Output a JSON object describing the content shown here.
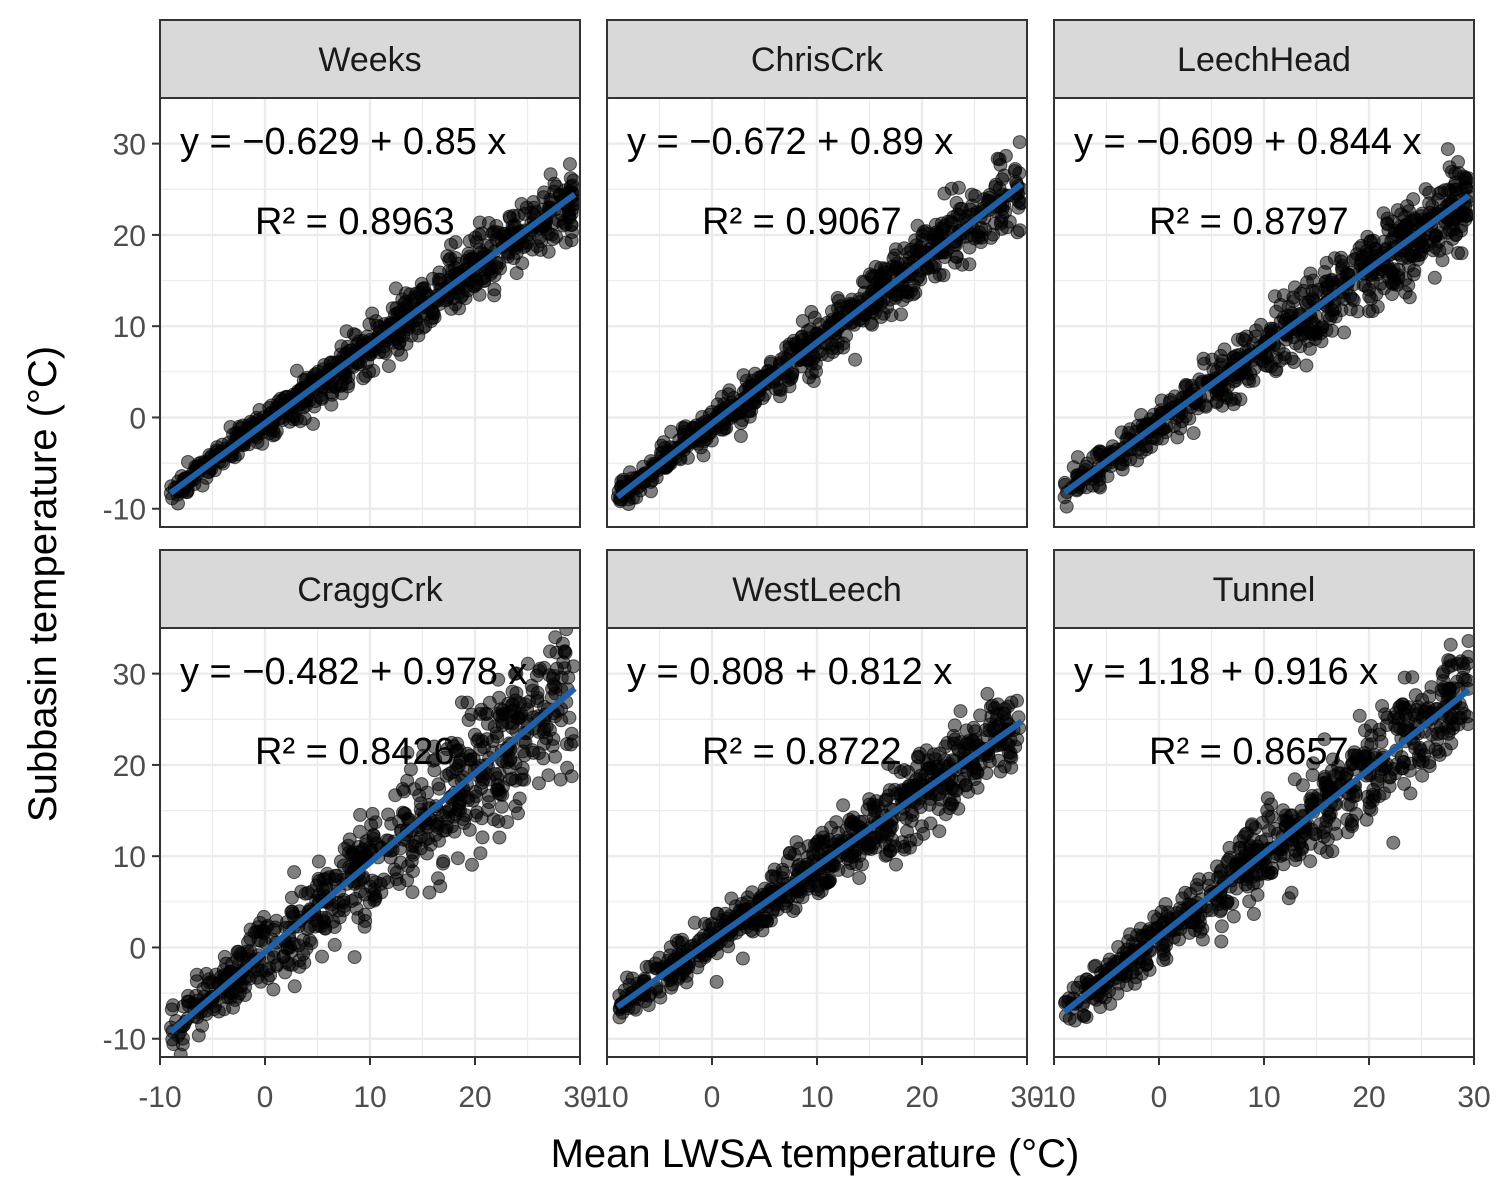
{
  "chart_data": {
    "type": "scatter",
    "xlabel": "Mean LWSA temperature (°C)",
    "ylabel": "Subbasin temperature (°C)",
    "xlim": [
      -10,
      30
    ],
    "ylim": [
      -12,
      35
    ],
    "xticks": [
      -10,
      0,
      10,
      20,
      30
    ],
    "yticks": [
      -10,
      0,
      10,
      20,
      30
    ],
    "xtick_labels": [
      "-10",
      "0",
      "10",
      "20",
      "30"
    ],
    "ytick_labels": [
      "-10",
      "0",
      "10",
      "20",
      "30"
    ],
    "grid": true,
    "point_color": "#000000",
    "line_color": "#1f5fa6",
    "panels": [
      {
        "name": "Weeks",
        "intercept": -0.629,
        "slope": 0.85,
        "r2": 0.8963,
        "equation_label": "y = −0.629 + 0.85 x",
        "r2_label": "R² = 0.8963",
        "x_range": [
          -9,
          29.5
        ],
        "scatter_sd": 1.6
      },
      {
        "name": "ChrisCrk",
        "intercept": -0.672,
        "slope": 0.89,
        "r2": 0.9067,
        "equation_label": "y = −0.672 + 0.89 x",
        "r2_label": "R² = 0.9067",
        "x_range": [
          -9,
          29.5
        ],
        "scatter_sd": 1.6
      },
      {
        "name": "LeechHead",
        "intercept": -0.609,
        "slope": 0.844,
        "r2": 0.8797,
        "equation_label": "y = −0.609 + 0.844 x",
        "r2_label": "R² = 0.8797",
        "x_range": [
          -9,
          29.5
        ],
        "scatter_sd": 1.9
      },
      {
        "name": "CraggCrk",
        "intercept": -0.482,
        "slope": 0.978,
        "r2": 0.8426,
        "equation_label": "y = −0.482 + 0.978 x",
        "r2_label": "R² = 0.8426",
        "x_range": [
          -9,
          29.5
        ],
        "scatter_sd": 3.2
      },
      {
        "name": "WestLeech",
        "intercept": 0.808,
        "slope": 0.812,
        "r2": 0.8722,
        "equation_label": "y = 0.808 + 0.812 x",
        "r2_label": "R² = 0.8722",
        "x_range": [
          -9,
          29.5
        ],
        "scatter_sd": 1.9
      },
      {
        "name": "Tunnel",
        "intercept": 1.18,
        "slope": 0.916,
        "r2": 0.8657,
        "equation_label": "y = 1.18 + 0.916 x",
        "r2_label": "R² = 0.8657",
        "x_range": [
          -9,
          29.5
        ],
        "scatter_sd": 2.4
      }
    ]
  }
}
